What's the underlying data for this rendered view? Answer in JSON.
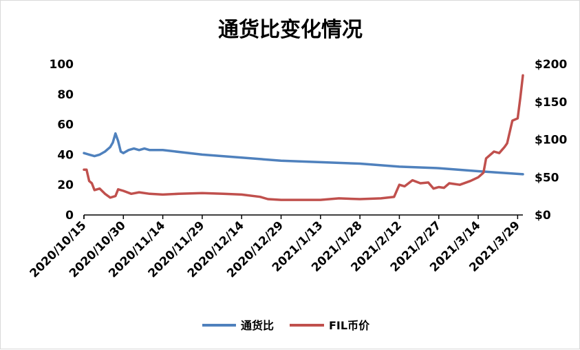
{
  "chart_data": {
    "type": "line",
    "title": "通货比变化情况",
    "x_tick_labels": [
      "2020/10/15",
      "2020/10/30",
      "2020/11/14",
      "2020/11/29",
      "2020/12/14",
      "2020/12/29",
      "2021/1/13",
      "2021/1/28",
      "2021/2/12",
      "2021/2/27",
      "2021/3/14",
      "2021/3/29"
    ],
    "x_range": [
      "2020/10/15",
      "2021/3/31"
    ],
    "y_left": {
      "lim": [
        0,
        100
      ],
      "ticks": [
        0,
        20,
        40,
        60,
        80,
        100
      ],
      "tick_labels": [
        "0",
        "20",
        "40",
        "60",
        "80",
        "100"
      ]
    },
    "y_right": {
      "lim": [
        0,
        200
      ],
      "ticks": [
        0,
        50,
        100,
        150,
        200
      ],
      "tick_labels": [
        "$0",
        "$50",
        "$100",
        "$150",
        "$200"
      ]
    },
    "grid": false,
    "legend_position": "bottom",
    "series": [
      {
        "name": "通货比",
        "axis": "left",
        "color": "#4f81bd",
        "points": [
          [
            "2020/10/15",
            41
          ],
          [
            "2020/10/17",
            40
          ],
          [
            "2020/10/19",
            39
          ],
          [
            "2020/10/21",
            40
          ],
          [
            "2020/10/23",
            42
          ],
          [
            "2020/10/25",
            45
          ],
          [
            "2020/10/26",
            48
          ],
          [
            "2020/10/27",
            54
          ],
          [
            "2020/10/28",
            49
          ],
          [
            "2020/10/29",
            42
          ],
          [
            "2020/10/30",
            41
          ],
          [
            "2020/11/1",
            43
          ],
          [
            "2020/11/3",
            44
          ],
          [
            "2020/11/5",
            43
          ],
          [
            "2020/11/7",
            44
          ],
          [
            "2020/11/9",
            43
          ],
          [
            "2020/11/14",
            43
          ],
          [
            "2020/11/29",
            40
          ],
          [
            "2020/12/14",
            38
          ],
          [
            "2020/12/29",
            36
          ],
          [
            "2021/1/13",
            35
          ],
          [
            "2021/1/28",
            34
          ],
          [
            "2021/2/12",
            32
          ],
          [
            "2021/2/27",
            31
          ],
          [
            "2021/3/14",
            29
          ],
          [
            "2021/3/31",
            27
          ]
        ]
      },
      {
        "name": "FIL币价",
        "axis": "right",
        "color": "#c0504d",
        "points": [
          [
            "2020/10/15",
            60
          ],
          [
            "2020/10/16",
            60
          ],
          [
            "2020/10/17",
            45
          ],
          [
            "2020/10/18",
            42
          ],
          [
            "2020/10/19",
            33
          ],
          [
            "2020/10/21",
            35
          ],
          [
            "2020/10/23",
            28
          ],
          [
            "2020/10/25",
            23
          ],
          [
            "2020/10/27",
            25
          ],
          [
            "2020/10/28",
            34
          ],
          [
            "2020/10/30",
            32
          ],
          [
            "2020/11/2",
            28
          ],
          [
            "2020/11/5",
            30
          ],
          [
            "2020/11/9",
            28
          ],
          [
            "2020/11/14",
            27
          ],
          [
            "2020/11/20",
            28
          ],
          [
            "2020/11/29",
            29
          ],
          [
            "2020/12/7",
            28
          ],
          [
            "2020/12/14",
            27
          ],
          [
            "2020/12/21",
            24
          ],
          [
            "2020/12/24",
            21
          ],
          [
            "2020/12/29",
            20
          ],
          [
            "2021/1/5",
            20
          ],
          [
            "2021/1/13",
            20
          ],
          [
            "2021/1/20",
            22
          ],
          [
            "2021/1/28",
            21
          ],
          [
            "2021/2/5",
            22
          ],
          [
            "2021/2/10",
            24
          ],
          [
            "2021/2/12",
            40
          ],
          [
            "2021/2/14",
            38
          ],
          [
            "2021/2/17",
            46
          ],
          [
            "2021/2/20",
            42
          ],
          [
            "2021/2/23",
            43
          ],
          [
            "2021/2/25",
            35
          ],
          [
            "2021/2/27",
            37
          ],
          [
            "2021/3/1",
            36
          ],
          [
            "2021/3/3",
            42
          ],
          [
            "2021/3/7",
            40
          ],
          [
            "2021/3/11",
            45
          ],
          [
            "2021/3/14",
            50
          ],
          [
            "2021/3/16",
            56
          ],
          [
            "2021/3/17",
            75
          ],
          [
            "2021/3/20",
            84
          ],
          [
            "2021/3/22",
            82
          ],
          [
            "2021/3/24",
            90
          ],
          [
            "2021/3/25",
            95
          ],
          [
            "2021/3/27",
            125
          ],
          [
            "2021/3/29",
            128
          ],
          [
            "2021/3/30",
            155
          ],
          [
            "2021/3/31",
            185
          ]
        ]
      }
    ]
  }
}
